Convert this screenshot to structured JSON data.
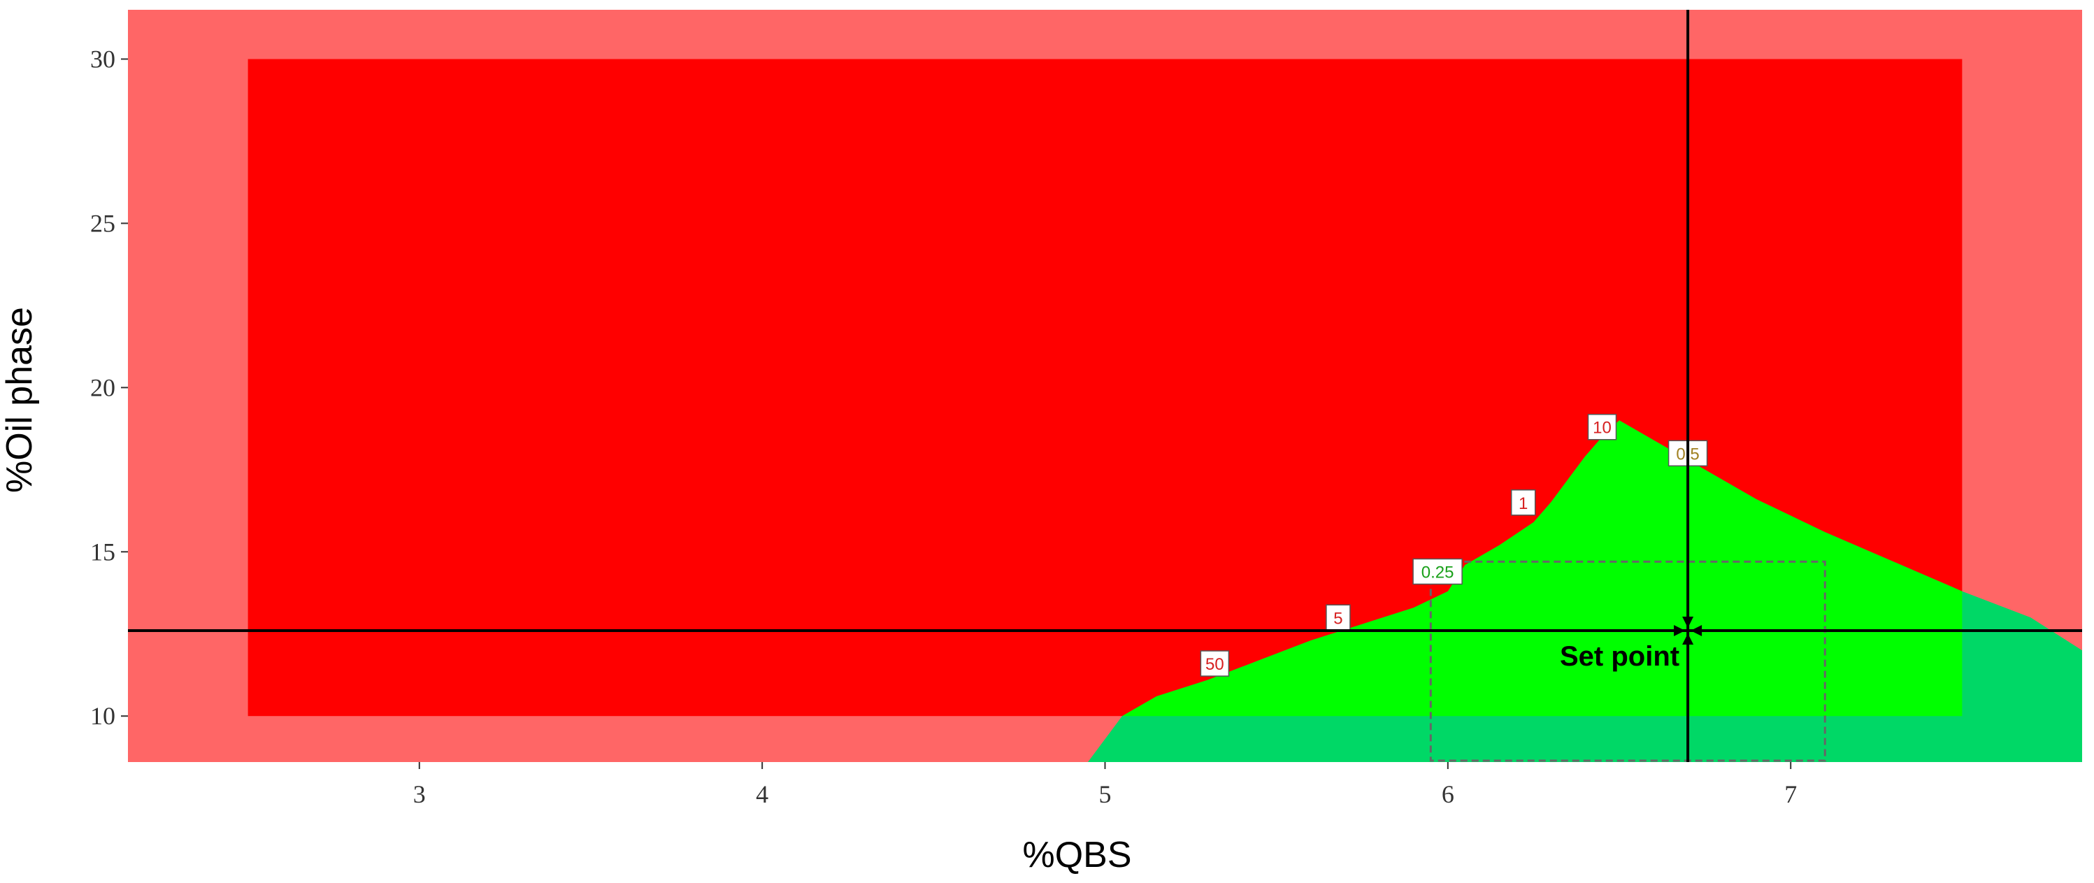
{
  "chart_data": {
    "type": "design-space contour plot",
    "xlabel": "%QBS",
    "ylabel": "%Oil phase",
    "xlim": [
      2.15,
      7.85
    ],
    "ylim": [
      8.6,
      31.5
    ],
    "x_ticks": [
      "3",
      "4",
      "5",
      "6",
      "7"
    ],
    "y_ticks": [
      "10",
      "15",
      "20",
      "25",
      "30"
    ],
    "experimental_domain": {
      "x": [
        2.5,
        7.5
      ],
      "y": [
        10,
        30
      ]
    },
    "sweet_spot_boundary": [
      [
        4.95,
        8.6
      ],
      [
        5.05,
        10.0
      ],
      [
        5.15,
        10.6
      ],
      [
        5.3,
        11.1
      ],
      [
        5.45,
        11.7
      ],
      [
        5.6,
        12.3
      ],
      [
        5.75,
        12.8
      ],
      [
        5.9,
        13.3
      ],
      [
        6.0,
        13.8
      ],
      [
        6.05,
        14.6
      ],
      [
        6.15,
        15.2
      ],
      [
        6.25,
        15.9
      ],
      [
        6.3,
        16.5
      ],
      [
        6.35,
        17.2
      ],
      [
        6.4,
        17.9
      ],
      [
        6.45,
        18.5
      ],
      [
        6.5,
        19.0
      ],
      [
        6.7,
        17.8
      ],
      [
        6.9,
        16.6
      ],
      [
        7.1,
        15.6
      ],
      [
        7.3,
        14.7
      ],
      [
        7.5,
        13.8
      ],
      [
        7.7,
        13.0
      ],
      [
        7.85,
        12.0
      ],
      [
        7.85,
        8.6
      ]
    ],
    "set_point": {
      "label": "Set point",
      "x": 6.7,
      "y": 12.6
    },
    "tolerance_box": {
      "x": [
        5.95,
        7.1
      ],
      "y": [
        8.6,
        14.7
      ]
    },
    "contour_labels": [
      {
        "text": "50",
        "x": 5.32,
        "y": 11.6,
        "color": "#d62020"
      },
      {
        "text": "5",
        "x": 5.68,
        "y": 13.0,
        "color": "#d62020"
      },
      {
        "text": "0.25",
        "x": 5.97,
        "y": 14.4,
        "color": "#1aa01a"
      },
      {
        "text": "1",
        "x": 6.22,
        "y": 16.5,
        "color": "#d62020"
      },
      {
        "text": "10",
        "x": 6.45,
        "y": 18.8,
        "color": "#d62020"
      },
      {
        "text": "0.5",
        "x": 6.7,
        "y": 18.0,
        "color": "#a08020"
      }
    ],
    "colors": {
      "outer_background": "#ff6666",
      "domain_fill": "#ff0000",
      "sweet_spot_inside": "#00ff00",
      "sweet_spot_outside": "#00d866",
      "crosshair": "#000000"
    },
    "grid": false,
    "legend": "none"
  }
}
